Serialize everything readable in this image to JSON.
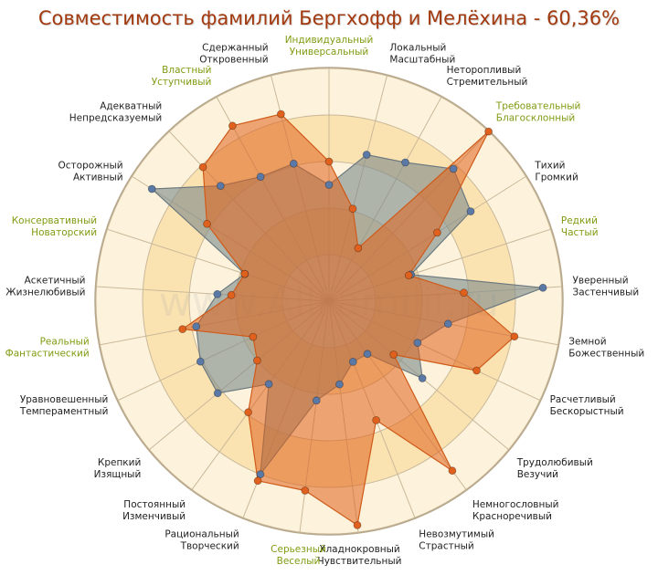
{
  "chart_data": {
    "type": "radar",
    "title": "Совместимость фамилий Бергхофф и Мелёхина - 60,36%",
    "watermark": "www.AllFamilii.ru",
    "range": [
      0,
      100
    ],
    "rings": 5,
    "grid": true,
    "colors": {
      "ring_outer": "#fdf3dc",
      "ring_inner": "#fbe3b1",
      "grid_line": "#c9b89a",
      "label_normal": "#222222",
      "label_highlight": "#7f9b12",
      "series_1_fill": "#7f8c8d",
      "series_1_marker": "#5b79a6",
      "series_2_fill": "#e0631c",
      "series_2_marker": "#e0601d"
    },
    "axes": [
      {
        "lines": [
          "Индивидуальный",
          "Универсальный"
        ],
        "highlight": true
      },
      {
        "lines": [
          "Локальный",
          "Масштабный"
        ],
        "highlight": false
      },
      {
        "lines": [
          "Неторопливый",
          "Стремительный"
        ],
        "highlight": false
      },
      {
        "lines": [
          "Требовательный",
          "Благосклонный"
        ],
        "highlight": true
      },
      {
        "lines": [
          "Тихий",
          "Громкий"
        ],
        "highlight": false
      },
      {
        "lines": [
          "Редкий",
          "Частый"
        ],
        "highlight": true
      },
      {
        "lines": [
          "Уверенный",
          "Застенчивый"
        ],
        "highlight": false
      },
      {
        "lines": [
          "Земной",
          "Божественный"
        ],
        "highlight": false
      },
      {
        "lines": [
          "Расчетливый",
          "Бескорыстный"
        ],
        "highlight": false
      },
      {
        "lines": [
          "Трудолюбивый",
          "Везучий"
        ],
        "highlight": false
      },
      {
        "lines": [
          "Немногословный",
          "Красноречивый"
        ],
        "highlight": false
      },
      {
        "lines": [
          "Невозмутимый",
          "Страстный"
        ],
        "highlight": false
      },
      {
        "lines": [
          "Хладнокровный",
          "Чувствительный"
        ],
        "highlight": false
      },
      {
        "lines": [
          "Серьезный",
          "Веселый"
        ],
        "highlight": true
      },
      {
        "lines": [
          "Рациональный",
          "Творческий"
        ],
        "highlight": false
      },
      {
        "lines": [
          "Постоянный",
          "Изменчивый"
        ],
        "highlight": false
      },
      {
        "lines": [
          "Крепкий",
          "Изящный"
        ],
        "highlight": false
      },
      {
        "lines": [
          "Уравновешенный",
          "Темпераментный"
        ],
        "highlight": false
      },
      {
        "lines": [
          "Реальный",
          "Фантастический"
        ],
        "highlight": true
      },
      {
        "lines": [
          "Аскетичный",
          "Жизнелюбивый"
        ],
        "highlight": false
      },
      {
        "lines": [
          "Консервативный",
          "Новаторский"
        ],
        "highlight": true
      },
      {
        "lines": [
          "Осторожный",
          "Активный"
        ],
        "highlight": false
      },
      {
        "lines": [
          "Адекватный",
          "Непредсказуемый"
        ],
        "highlight": false
      },
      {
        "lines": [
          "Властный",
          "Уступчивый"
        ],
        "highlight": true
      },
      {
        "lines": [
          "Сдержанный",
          "Откровенный"
        ],
        "highlight": false
      }
    ],
    "series": [
      {
        "values": [
          50,
          65,
          68,
          78,
          72,
          37,
          92,
          52,
          42,
          52,
          28,
          28,
          36,
          43,
          80,
          44,
          62,
          61,
          58,
          48,
          38,
          90,
          68,
          61,
          61
        ]
      },
      {
        "values": [
          60,
          41,
          26,
          100,
          55,
          36,
          58,
          81,
          70,
          36,
          90,
          55,
          97,
          82,
          83,
          59,
          40,
          36,
          64,
          42,
          38,
          62,
          79,
          86,
          83
        ]
      }
    ]
  }
}
